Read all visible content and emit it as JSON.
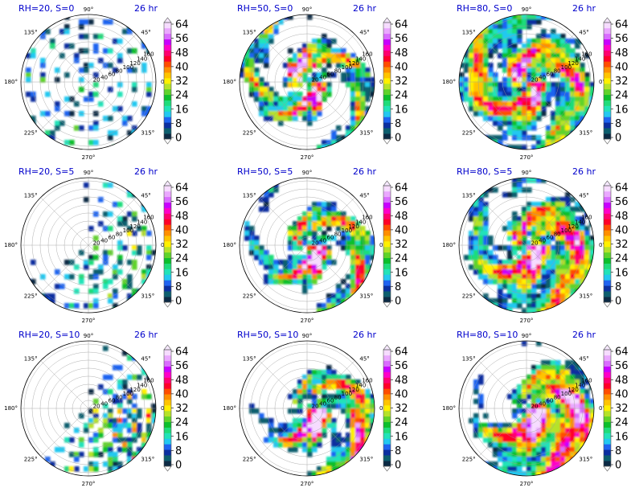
{
  "colorbar": {
    "ticks": [
      "0",
      "8",
      "16",
      "24",
      "32",
      "40",
      "48",
      "56",
      "64"
    ],
    "colors": [
      "#0c2a44",
      "#0c5e6e",
      "#0b2fa0",
      "#1f63f0",
      "#23c8f0",
      "#22e3b8",
      "#1fdc7a",
      "#0cbf2c",
      "#5fd32a",
      "#b5e22a",
      "#fff000",
      "#ffc400",
      "#ff8f00",
      "#ff4d00",
      "#ff0028",
      "#ff006e",
      "#ff00c8",
      "#c800ff",
      "#d96cff",
      "#eaa8ff",
      "#f6dcff"
    ]
  },
  "polar_axes": {
    "angle_labels": [
      "0°",
      "45°",
      "90°",
      "135°",
      "180°",
      "225°",
      "270°",
      "315°"
    ],
    "radial_labels": [
      "20",
      "40",
      "60",
      "80",
      "100",
      "120",
      "140",
      "160"
    ]
  },
  "chart_data": [
    {
      "type": "heatmap",
      "title": "RH=20, S=0",
      "time": "26 hr",
      "rh": 20,
      "s": 0
    },
    {
      "type": "heatmap",
      "title": "RH=50, S=0",
      "time": "26 hr",
      "rh": 50,
      "s": 0
    },
    {
      "type": "heatmap",
      "title": "RH=80, S=0",
      "time": "26 hr",
      "rh": 80,
      "s": 0
    },
    {
      "type": "heatmap",
      "title": "RH=20, S=5",
      "time": "26 hr",
      "rh": 20,
      "s": 5
    },
    {
      "type": "heatmap",
      "title": "RH=50, S=5",
      "time": "26 hr",
      "rh": 50,
      "s": 5
    },
    {
      "type": "heatmap",
      "title": "RH=80, S=5",
      "time": "26 hr",
      "rh": 80,
      "s": 5
    },
    {
      "type": "heatmap",
      "title": "RH=20, S=10",
      "time": "26 hr",
      "rh": 20,
      "s": 10
    },
    {
      "type": "heatmap",
      "title": "RH=50, S=10",
      "time": "26 hr",
      "rh": 50,
      "s": 10
    },
    {
      "type": "heatmap",
      "title": "RH=80, S=10",
      "time": "26 hr",
      "rh": 80,
      "s": 10
    }
  ]
}
